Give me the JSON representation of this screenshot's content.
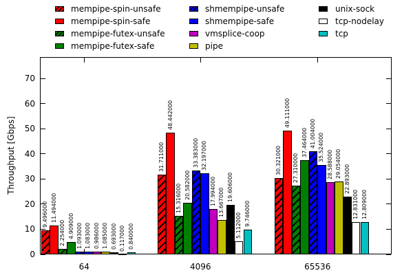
{
  "chart_data": {
    "type": "bar",
    "title": "",
    "xlabel": "",
    "ylabel": "Throughput [Gbps]",
    "categories": [
      "64",
      "4096",
      "65536"
    ],
    "ylim": [
      0,
      78.5
    ],
    "yticks": [
      0,
      10,
      20,
      30,
      40,
      50,
      60,
      70
    ],
    "grid": false,
    "legend_position": "top",
    "value_label_decimals": 6,
    "series": [
      {
        "name": "mempipe-spin-unsafe",
        "color": "#ff0000",
        "hatch": true,
        "values": [
          9.496,
          31.711,
          30.321
        ]
      },
      {
        "name": "mempipe-spin-safe",
        "color": "#ff0000",
        "hatch": false,
        "values": [
          11.494,
          48.442,
          49.111
        ]
      },
      {
        "name": "mempipe-futex-unsafe",
        "color": "#008000",
        "hatch": true,
        "values": [
          2.254,
          15.316,
          27.31
        ]
      },
      {
        "name": "mempipe-futex-safe",
        "color": "#008000",
        "hatch": false,
        "values": [
          4.909,
          20.582,
          37.464
        ]
      },
      {
        "name": "shmempipe-unsafe",
        "color": "#0000ff",
        "hatch": true,
        "values": [
          1.093,
          33.383,
          41.004
        ]
      },
      {
        "name": "shmempipe-safe",
        "color": "#0000ff",
        "hatch": false,
        "values": [
          1.083,
          32.197,
          35.524
        ]
      },
      {
        "name": "vmsplice-coop",
        "color": "#bf00bf",
        "hatch": false,
        "values": [
          0.986,
          17.994,
          28.588
        ]
      },
      {
        "name": "pipe",
        "color": "#bfbf00",
        "hatch": false,
        "values": [
          1.085,
          13.667,
          29.054
        ]
      },
      {
        "name": "unix-sock",
        "color": "#000000",
        "hatch": false,
        "values": [
          0.693,
          19.606,
          22.893
        ]
      },
      {
        "name": "tcp-nodelay",
        "color": "#ffffff",
        "hatch": false,
        "values": [
          0.117,
          5.112,
          12.831
        ]
      },
      {
        "name": "tcp",
        "color": "#00bfbf",
        "hatch": false,
        "values": [
          0.84,
          9.746,
          12.809
        ]
      }
    ]
  }
}
